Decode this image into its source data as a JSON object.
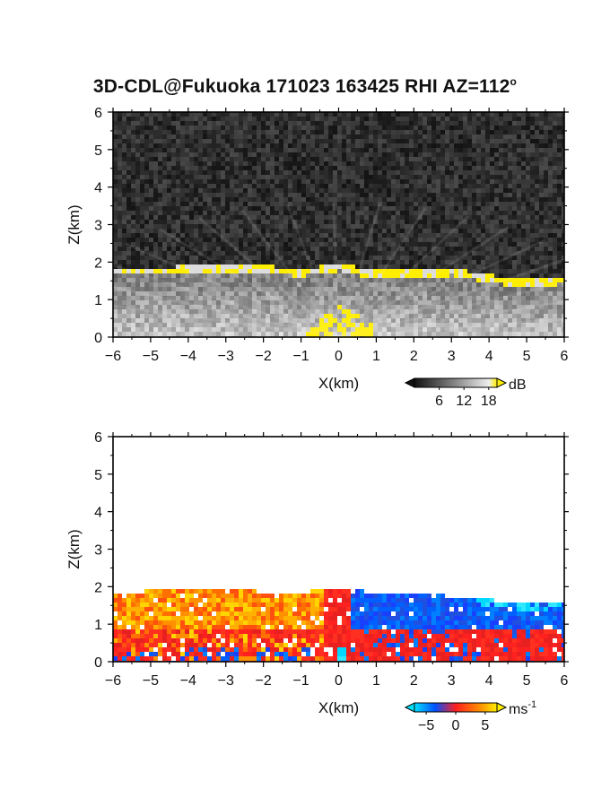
{
  "title": "3D-CDL@Fukuoka 171023 163425 RHI AZ=112",
  "title_sup": "o",
  "chart_data": [
    {
      "type": "heatmap",
      "quantity": "SNR",
      "xlabel": "X(km)",
      "ylabel": "Z(km)",
      "xlim": [
        -6,
        6
      ],
      "ylim": [
        0,
        6
      ],
      "xticks": [
        "-6",
        "-5",
        "-4",
        "-3",
        "-2",
        "-1",
        "0",
        "1",
        "2",
        "3",
        "4",
        "5",
        "6"
      ],
      "yticks": [
        "0",
        "1",
        "2",
        "3",
        "4",
        "5",
        "6"
      ],
      "colorbar": {
        "unit": "dB",
        "ticks": [
          "6",
          "12",
          "18"
        ],
        "range": [
          0,
          20
        ]
      },
      "layer_top_km": [
        [
          -6.0,
          1.82
        ],
        [
          -5.0,
          1.85
        ],
        [
          -4.0,
          1.86
        ],
        [
          -3.0,
          1.88
        ],
        [
          -2.0,
          1.87
        ],
        [
          -1.0,
          1.8
        ],
        [
          -0.4,
          1.88
        ],
        [
          0.0,
          1.96
        ],
        [
          0.5,
          1.82
        ],
        [
          1.0,
          1.74
        ],
        [
          2.0,
          1.8
        ],
        [
          3.0,
          1.82
        ],
        [
          4.0,
          1.62
        ],
        [
          5.0,
          1.5
        ],
        [
          6.0,
          1.6
        ]
      ],
      "colors": {
        "low": "#1a1a1a",
        "high": "#f5f5f5",
        "saturated": "#ffee00"
      }
    },
    {
      "type": "heatmap",
      "quantity": "radial velocity",
      "xlabel": "X(km)",
      "ylabel": "Z(km)",
      "xlim": [
        -6,
        6
      ],
      "ylim": [
        0,
        6
      ],
      "xticks": [
        "-6",
        "-5",
        "-4",
        "-3",
        "-2",
        "-1",
        "0",
        "1",
        "2",
        "3",
        "4",
        "5",
        "6"
      ],
      "yticks": [
        "0",
        "1",
        "2",
        "3",
        "4",
        "5",
        "6"
      ],
      "colorbar": {
        "unit": "ms",
        "unit_sup": "-1",
        "ticks": [
          "-5",
          "0",
          "5"
        ],
        "range": [
          -7,
          7
        ]
      },
      "layer_top_km": [
        [
          -6.0,
          1.92
        ],
        [
          -5.0,
          1.94
        ],
        [
          -4.0,
          1.95
        ],
        [
          -3.0,
          1.96
        ],
        [
          -2.0,
          1.93
        ],
        [
          -1.0,
          1.92
        ],
        [
          -0.3,
          2.0
        ],
        [
          0.5,
          1.95
        ],
        [
          1.0,
          1.9
        ],
        [
          2.0,
          1.88
        ],
        [
          3.0,
          1.8
        ],
        [
          4.0,
          1.7
        ],
        [
          5.0,
          1.62
        ],
        [
          6.0,
          1.68
        ]
      ],
      "colors": {
        "negative": "#0050ff",
        "zero": "#ff2020",
        "positive": "#ffee00",
        "strong_negative": "#00e0ff"
      }
    }
  ]
}
